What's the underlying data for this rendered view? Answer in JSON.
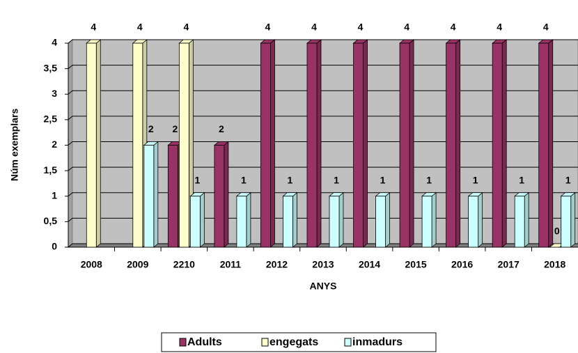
{
  "chart_data": {
    "type": "bar",
    "categories": [
      "2008",
      "2009",
      "2210",
      "2011",
      "2012",
      "2013",
      "2014",
      "2015",
      "2016",
      "2017",
      "2018"
    ],
    "series": [
      {
        "name": "Adults",
        "color": "#993366",
        "values": [
          null,
          null,
          2,
          2,
          4,
          4,
          4,
          4,
          4,
          4,
          4
        ]
      },
      {
        "name": "engegats",
        "color": "#ffffcc",
        "values": [
          4,
          4,
          4,
          null,
          null,
          null,
          null,
          null,
          null,
          null,
          0
        ]
      },
      {
        "name": "inmadurs",
        "color": "#ccffff",
        "values": [
          null,
          2,
          1,
          1,
          1,
          1,
          1,
          1,
          1,
          1,
          1
        ]
      }
    ],
    "ylabel": "Núm exemplars",
    "xlabel": "ANYS",
    "ylim": [
      0,
      4
    ],
    "yticks": [
      0,
      {
        "value": 0.5,
        "label": "0,5"
      },
      1,
      {
        "value": 1.5,
        "label": "1,5"
      },
      2,
      {
        "value": 2.5,
        "label": "2,5"
      },
      3,
      {
        "value": 3.5,
        "label": "3,5"
      },
      4
    ],
    "grid": true,
    "legend": "bottom"
  }
}
